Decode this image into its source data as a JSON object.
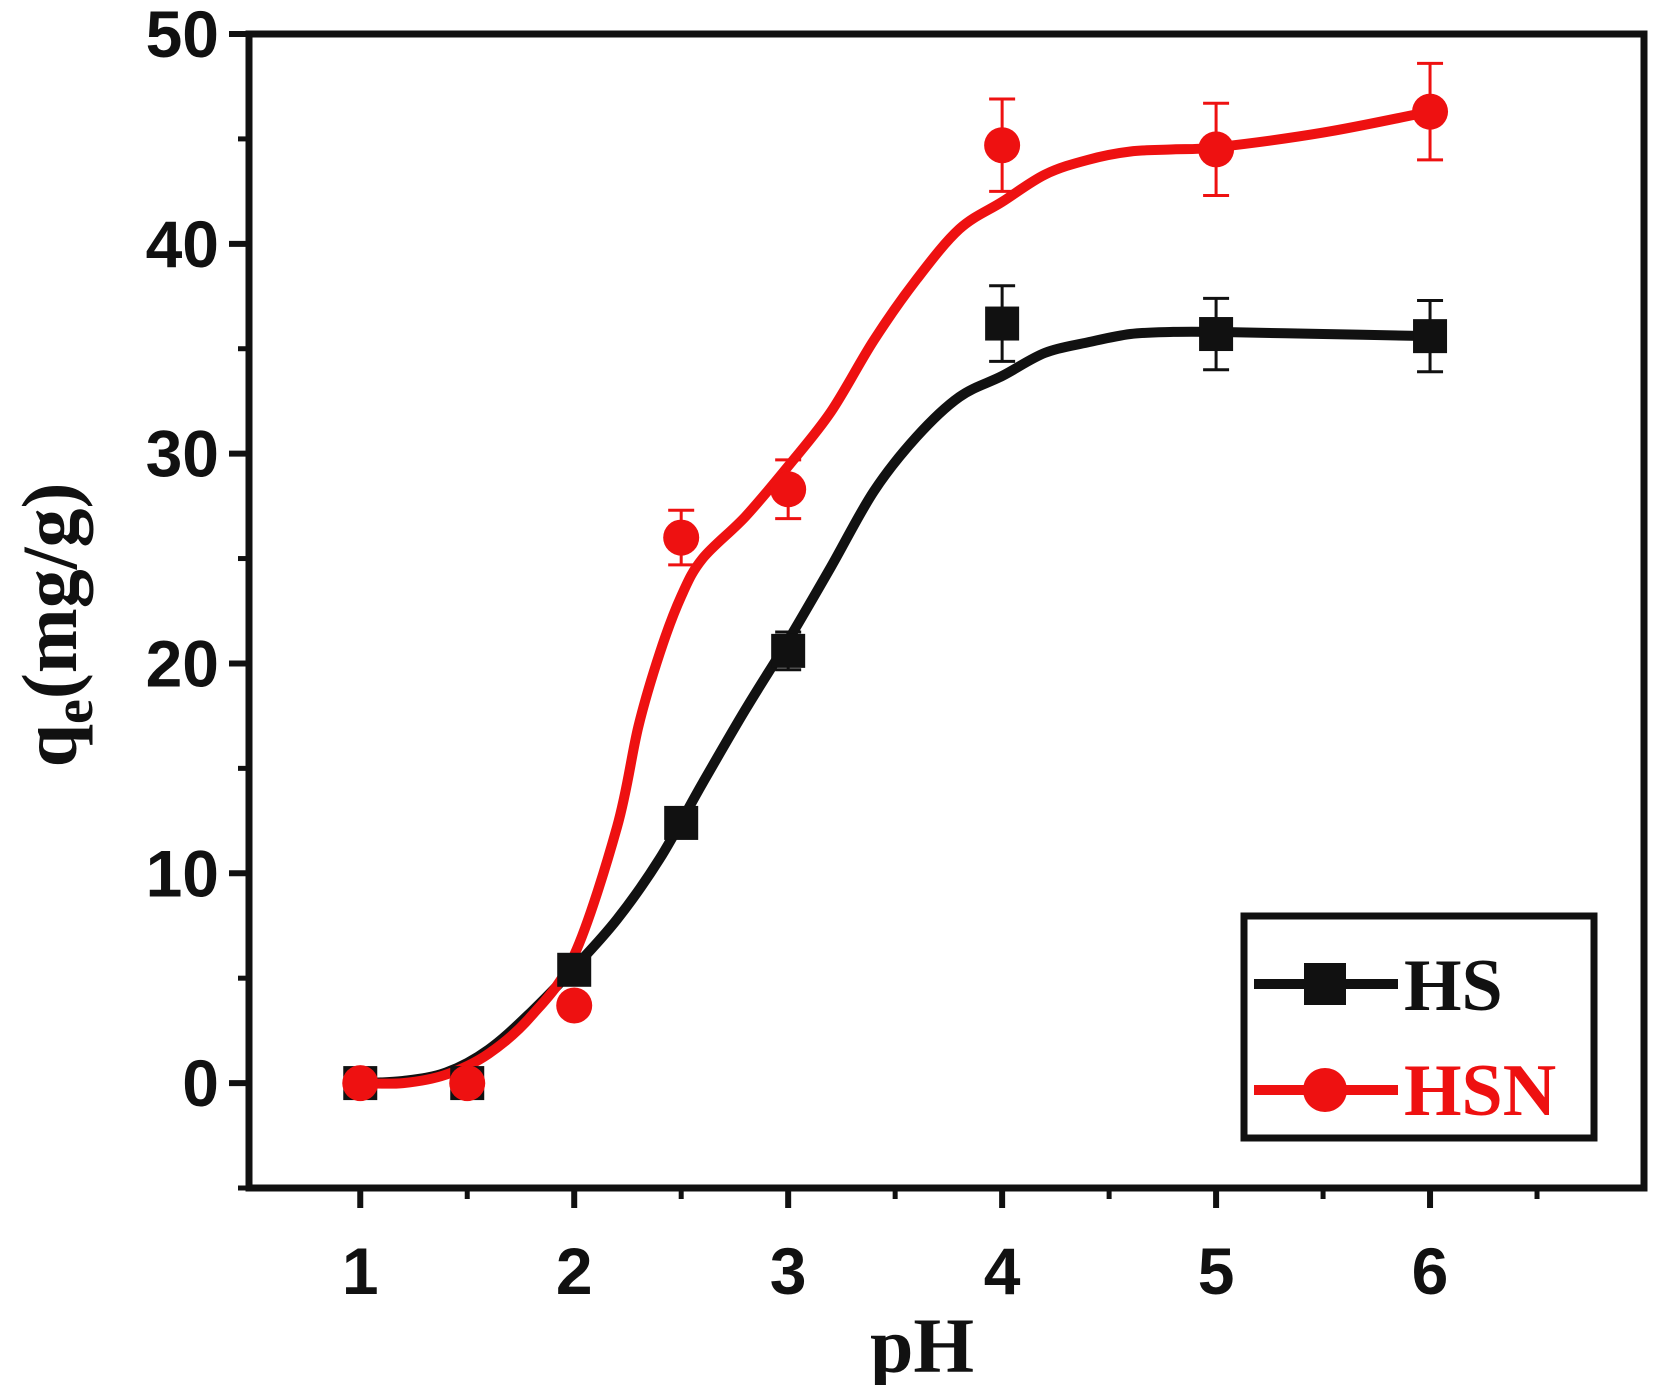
{
  "chart_data": {
    "type": "line",
    "xlabel": "pH",
    "ylabel_main": "q",
    "ylabel_sub": "e",
    "ylabel_rest": "(mg/g)",
    "xlim": [
      0.48,
      7.0
    ],
    "ylim": [
      -5,
      50
    ],
    "xticks": [
      1,
      2,
      3,
      4,
      5,
      6
    ],
    "xticks_minor": [
      1.5,
      2.5,
      3.5,
      4.5,
      5.5,
      6.5
    ],
    "yticks": [
      0,
      10,
      20,
      30,
      40,
      50
    ],
    "yticks_minor": [
      -5,
      5,
      15,
      25,
      35,
      45
    ],
    "grid": false,
    "legend_position": "bottom-right",
    "series": [
      {
        "name": "HS",
        "color": "#111111",
        "marker": "square",
        "points": [
          {
            "x": 1,
            "y": 0.0,
            "err": null
          },
          {
            "x": 1.5,
            "y": 0.0,
            "err": null
          },
          {
            "x": 2,
            "y": 5.4,
            "err": null
          },
          {
            "x": 2.5,
            "y": 12.4,
            "err": null
          },
          {
            "x": 3,
            "y": 20.6,
            "err": 0.9
          },
          {
            "x": 4,
            "y": 36.2,
            "err": 1.8
          },
          {
            "x": 5,
            "y": 35.7,
            "err": 1.7
          },
          {
            "x": 6,
            "y": 35.6,
            "err": 1.7
          }
        ],
        "curve": [
          [
            1,
            0
          ],
          [
            1.2,
            0.1
          ],
          [
            1.4,
            0.5
          ],
          [
            1.6,
            1.6
          ],
          [
            1.8,
            3.4
          ],
          [
            2.0,
            5.5
          ],
          [
            2.2,
            7.8
          ],
          [
            2.4,
            10.7
          ],
          [
            2.6,
            14.3
          ],
          [
            2.8,
            17.8
          ],
          [
            3.0,
            21.1
          ],
          [
            3.2,
            24.6
          ],
          [
            3.4,
            28.2
          ],
          [
            3.6,
            30.8
          ],
          [
            3.8,
            32.7
          ],
          [
            4.0,
            33.7
          ],
          [
            4.2,
            34.8
          ],
          [
            4.4,
            35.3
          ],
          [
            4.6,
            35.7
          ],
          [
            4.8,
            35.8
          ],
          [
            5.0,
            35.8
          ],
          [
            5.5,
            35.7
          ],
          [
            6.0,
            35.6
          ]
        ]
      },
      {
        "name": "HSN",
        "color": "#ee1111",
        "marker": "circle",
        "points": [
          {
            "x": 1,
            "y": 0.0,
            "err": null
          },
          {
            "x": 1.5,
            "y": 0.0,
            "err": null
          },
          {
            "x": 2,
            "y": 3.7,
            "err": null
          },
          {
            "x": 2.5,
            "y": 26.0,
            "err": 1.3
          },
          {
            "x": 3,
            "y": 28.3,
            "err": 1.4
          },
          {
            "x": 4,
            "y": 44.7,
            "err": 2.2
          },
          {
            "x": 5,
            "y": 44.5,
            "err": 2.2
          },
          {
            "x": 6,
            "y": 46.3,
            "err": 2.3
          }
        ],
        "curve": [
          [
            1,
            0
          ],
          [
            1.2,
            0.0
          ],
          [
            1.4,
            0.4
          ],
          [
            1.6,
            1.4
          ],
          [
            1.8,
            3.2
          ],
          [
            2.0,
            6.1
          ],
          [
            2.2,
            12.2
          ],
          [
            2.3,
            17.0
          ],
          [
            2.4,
            20.5
          ],
          [
            2.5,
            23.2
          ],
          [
            2.6,
            25.0
          ],
          [
            2.8,
            27.0
          ],
          [
            3.0,
            29.4
          ],
          [
            3.2,
            32.0
          ],
          [
            3.4,
            35.4
          ],
          [
            3.6,
            38.3
          ],
          [
            3.8,
            40.7
          ],
          [
            4.0,
            42.0
          ],
          [
            4.2,
            43.3
          ],
          [
            4.4,
            44.0
          ],
          [
            4.6,
            44.4
          ],
          [
            4.8,
            44.5
          ],
          [
            5.0,
            44.6
          ],
          [
            5.5,
            45.3
          ],
          [
            6.0,
            46.3
          ]
        ]
      }
    ]
  }
}
